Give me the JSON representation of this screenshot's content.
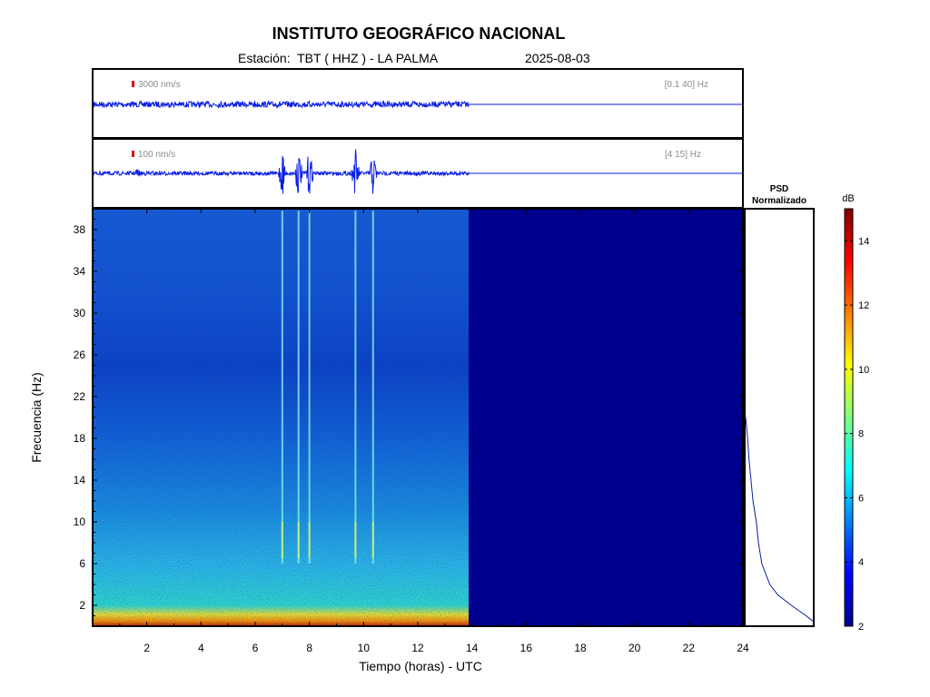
{
  "header": {
    "title": "INSTITUTO GEOGRÁFICO NACIONAL",
    "station": "Estación:  TBT ( HHZ ) - LA PALMA",
    "date": "2025-08-03"
  },
  "traces": [
    {
      "scale_label": "3000 nm/s",
      "band_label": "[0.1 40] Hz"
    },
    {
      "scale_label": "100 nm/s",
      "band_label": "[4 15] Hz"
    }
  ],
  "colors": {
    "trace": "#0a1ee6",
    "scale_marker": "#e00000",
    "empty_region": "#00008f"
  },
  "chart_data": {
    "type": "heatmap",
    "xlabel": "Tiempo (horas) - UTC",
    "ylabel": "Frecuencia  (Hz)",
    "xlim": [
      0,
      24
    ],
    "ylim": [
      0,
      40
    ],
    "x_ticks": [
      2,
      4,
      6,
      8,
      10,
      12,
      14,
      16,
      18,
      20,
      22,
      24
    ],
    "y_ticks": [
      2,
      6,
      10,
      14,
      18,
      22,
      26,
      30,
      34,
      38
    ],
    "data_end_hour": 13.9,
    "event_times_hours": [
      7.0,
      7.6,
      8.0,
      9.7,
      10.35
    ],
    "psd": {
      "title_line1": "PSD",
      "title_line2": "Normalizado",
      "freq_hz": [
        0.5,
        1,
        2,
        3,
        4,
        6,
        8,
        10,
        12,
        14,
        16,
        18,
        19,
        20
      ],
      "normalized": [
        1.0,
        0.9,
        0.68,
        0.48,
        0.36,
        0.24,
        0.19,
        0.16,
        0.11,
        0.08,
        0.05,
        0.03,
        0.015,
        0.0
      ]
    },
    "colorbar": {
      "label": "dB",
      "min": 2,
      "max": 15,
      "ticks": [
        2,
        4,
        6,
        8,
        10,
        12,
        14
      ]
    }
  }
}
